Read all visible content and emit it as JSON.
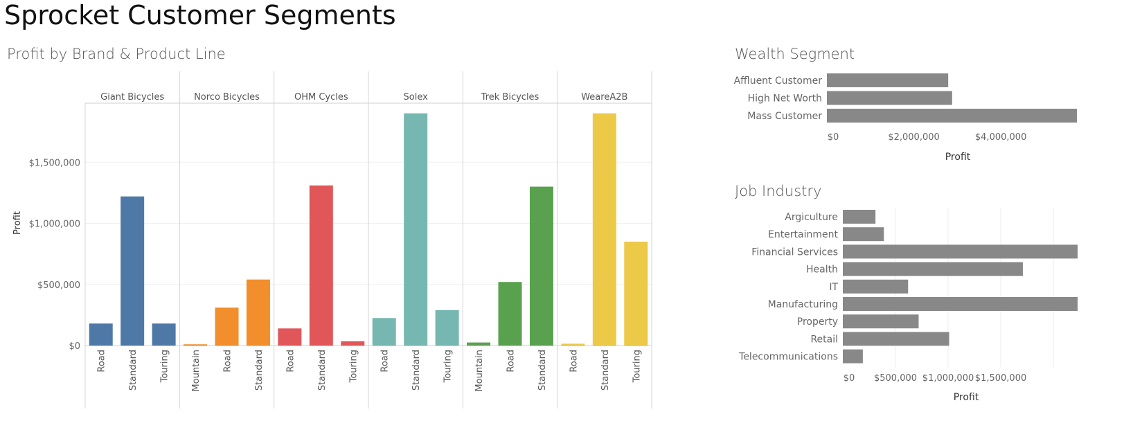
{
  "dashboard": {
    "title": "Sprocket Customer Segments"
  },
  "chart_data": [
    {
      "type": "bar",
      "title": "Profit by Brand & Product Line",
      "ylabel": "Profit",
      "xlabel": "",
      "ylim": [
        0,
        2000000
      ],
      "yticks": [
        0,
        500000,
        1000000,
        1500000
      ],
      "ytick_labels": [
        "$0",
        "$500,000",
        "$1,000,000",
        "$1,500,000"
      ],
      "grid": true,
      "groups": [
        {
          "name": "Giant Bicycles",
          "color": "#4e79a7",
          "categories": [
            "Road",
            "Standard",
            "Touring"
          ],
          "values": [
            180000,
            1220000,
            180000
          ]
        },
        {
          "name": "Norco Bicycles",
          "color": "#f28e2b",
          "categories": [
            "Mountain",
            "Road",
            "Standard"
          ],
          "values": [
            10000,
            310000,
            540000
          ]
        },
        {
          "name": "OHM Cycles",
          "color": "#e15759",
          "categories": [
            "Road",
            "Standard",
            "Touring"
          ],
          "values": [
            140000,
            1310000,
            35000
          ]
        },
        {
          "name": "Solex",
          "color": "#76b7b2",
          "categories": [
            "Road",
            "Standard",
            "Touring"
          ],
          "values": [
            225000,
            1900000,
            290000
          ]
        },
        {
          "name": "Trek Bicycles",
          "color": "#59a14f",
          "categories": [
            "Mountain",
            "Road",
            "Standard"
          ],
          "values": [
            25000,
            520000,
            1300000
          ]
        },
        {
          "name": "WeareA2B",
          "color": "#edc948",
          "categories": [
            "Road",
            "Standard",
            "Touring"
          ],
          "values": [
            15000,
            1900000,
            850000
          ]
        }
      ]
    },
    {
      "type": "bar",
      "orientation": "horizontal",
      "title": "Wealth Segment",
      "xlabel": "Profit",
      "color": "#888888",
      "categories": [
        "Affluent Customer",
        "High Net Worth",
        "Mass Customer"
      ],
      "values": [
        2790000,
        2880000,
        5750000
      ],
      "xlim": [
        0,
        5750000
      ],
      "xticks": [
        0,
        2000000,
        4000000
      ],
      "xtick_labels": [
        "$0",
        "$2,000,000",
        "$4,000,000"
      ]
    },
    {
      "type": "bar",
      "orientation": "horizontal",
      "title": "Job Industry",
      "xlabel": "Profit",
      "color": "#888888",
      "categories": [
        "Argiculture",
        "Entertainment",
        "Financial Services",
        "Health",
        "IT",
        "Manufacturing",
        "Property",
        "Retail",
        "Telecommunications"
      ],
      "values": [
        310000,
        390000,
        2230000,
        1710000,
        620000,
        2230000,
        720000,
        1010000,
        190000
      ],
      "xlim": [
        0,
        2230000
      ],
      "xticks": [
        0,
        500000,
        1000000,
        1500000
      ],
      "xtick_labels": [
        "$0",
        "$500,000",
        "$1,000,000",
        "$1,500,000"
      ],
      "grid": true
    }
  ]
}
